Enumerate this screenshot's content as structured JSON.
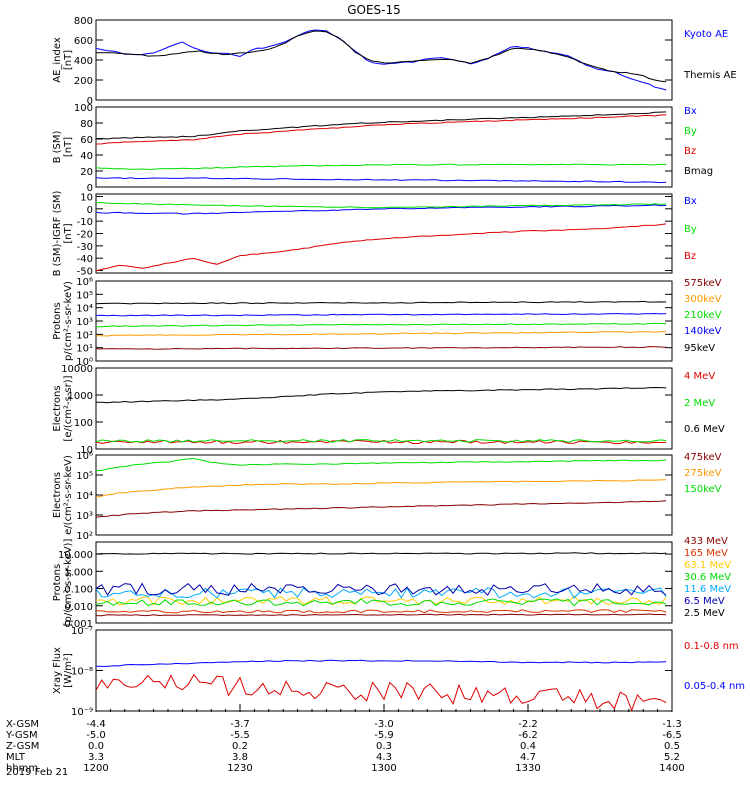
{
  "title": "GOES-15",
  "chart_data": [
    {
      "type": "line",
      "ylabel": [
        "AE_index",
        "[nT]"
      ],
      "ylim": [
        0,
        800
      ],
      "yscale": "linear",
      "yticks": [
        {
          "v": 0,
          "t": "0"
        },
        {
          "v": 200,
          "t": "200"
        },
        {
          "v": 400,
          "t": "400"
        },
        {
          "v": 600,
          "t": "600"
        },
        {
          "v": 800,
          "t": "800"
        }
      ],
      "series": [
        {
          "name": "Kyoto AE",
          "color": "#0000ff",
          "kind": "knots",
          "x": [
            0,
            3,
            6,
            9,
            12,
            15,
            18,
            21,
            24,
            27,
            30,
            33,
            36,
            39,
            42,
            45,
            48,
            51,
            54,
            57,
            60,
            63,
            66,
            69,
            72,
            75,
            78,
            81,
            84,
            87,
            90,
            93,
            96,
            99,
            102,
            105,
            108,
            111,
            114,
            117,
            120
          ],
          "y": [
            520,
            490,
            460,
            450,
            470,
            530,
            580,
            510,
            470,
            470,
            440,
            510,
            530,
            570,
            640,
            700,
            690,
            610,
            490,
            380,
            360,
            370,
            380,
            410,
            420,
            400,
            360,
            400,
            470,
            540,
            520,
            490,
            470,
            430,
            350,
            300,
            280,
            220,
            180,
            120,
            80
          ]
        },
        {
          "name": "Themis AE",
          "color": "#000000",
          "kind": "knots",
          "x": [
            0,
            3,
            6,
            9,
            12,
            15,
            18,
            21,
            24,
            27,
            30,
            33,
            36,
            39,
            42,
            45,
            48,
            51,
            54,
            57,
            60,
            63,
            66,
            69,
            72,
            75,
            78,
            81,
            84,
            87,
            90,
            93,
            96,
            99,
            102,
            105,
            108,
            111,
            114,
            117,
            120
          ],
          "y": [
            470,
            470,
            460,
            450,
            440,
            450,
            470,
            490,
            470,
            450,
            470,
            480,
            510,
            560,
            640,
            690,
            680,
            610,
            480,
            390,
            370,
            380,
            390,
            400,
            410,
            400,
            370,
            410,
            460,
            520,
            510,
            490,
            460,
            420,
            360,
            320,
            280,
            270,
            240,
            190,
            170
          ]
        }
      ]
    },
    {
      "type": "line",
      "ylabel": [
        "B (SM)",
        "[nT]"
      ],
      "ylim": [
        0,
        100
      ],
      "yscale": "linear",
      "yticks": [
        {
          "v": 0,
          "t": "0"
        },
        {
          "v": 20,
          "t": "20"
        },
        {
          "v": 40,
          "t": "40"
        },
        {
          "v": 60,
          "t": "60"
        },
        {
          "v": 80,
          "t": "80"
        },
        {
          "v": 100,
          "t": "100"
        }
      ],
      "series": [
        {
          "name": "Bx",
          "color": "#0000ff",
          "kind": "knots",
          "x": [
            0,
            20,
            40,
            60,
            80,
            100,
            120
          ],
          "y": [
            11,
            11,
            10,
            9,
            8,
            7,
            6
          ]
        },
        {
          "name": "By",
          "color": "#00dd00",
          "kind": "knots",
          "x": [
            0,
            10,
            20,
            30,
            40,
            50,
            60,
            70,
            80,
            90,
            100,
            110,
            120
          ],
          "y": [
            24,
            22,
            23,
            25,
            26,
            27,
            28,
            28,
            28,
            28,
            28,
            28,
            28
          ]
        },
        {
          "name": "Bz",
          "color": "#dd0000",
          "kind": "knots",
          "x": [
            0,
            10,
            20,
            30,
            40,
            50,
            60,
            70,
            80,
            90,
            100,
            110,
            120
          ],
          "y": [
            54,
            57,
            59,
            66,
            70,
            74,
            78,
            80,
            82,
            84,
            86,
            88,
            90
          ]
        },
        {
          "name": "Bmag",
          "color": "#000000",
          "kind": "knots",
          "x": [
            0,
            10,
            20,
            30,
            40,
            50,
            60,
            70,
            80,
            90,
            100,
            110,
            120
          ],
          "y": [
            60,
            62,
            63,
            70,
            74,
            78,
            81,
            83,
            85,
            87,
            89,
            91,
            94
          ]
        }
      ]
    },
    {
      "type": "line",
      "ylabel": [
        "B (SM)-IGRF (SM)",
        "[nT]"
      ],
      "ylim": [
        -52,
        12
      ],
      "yscale": "linear",
      "yticks": [
        {
          "v": -50,
          "t": "-50"
        },
        {
          "v": -40,
          "t": "-40"
        },
        {
          "v": -30,
          "t": "-30"
        },
        {
          "v": -20,
          "t": "-20"
        },
        {
          "v": -10,
          "t": "-10"
        },
        {
          "v": 0,
          "t": "0"
        },
        {
          "v": 10,
          "t": "10"
        }
      ],
      "series": [
        {
          "name": "Bx",
          "color": "#0000ff",
          "kind": "knots",
          "x": [
            0,
            20,
            40,
            60,
            80,
            100,
            120
          ],
          "y": [
            -3,
            -4,
            -2,
            0,
            1,
            2,
            3
          ]
        },
        {
          "name": "By",
          "color": "#00dd00",
          "kind": "knots",
          "x": [
            0,
            20,
            40,
            60,
            80,
            100,
            120
          ],
          "y": [
            5,
            3,
            2,
            1,
            2,
            3,
            4
          ]
        },
        {
          "name": "Bz",
          "color": "#dd0000",
          "kind": "knots",
          "x": [
            0,
            5,
            10,
            15,
            20,
            25,
            30,
            35,
            40,
            45,
            50,
            55,
            60,
            70,
            80,
            90,
            100,
            110,
            120
          ],
          "y": [
            -50,
            -46,
            -48,
            -44,
            -40,
            -45,
            -38,
            -36,
            -34,
            -31,
            -28,
            -26,
            -24,
            -22,
            -20,
            -18,
            -17,
            -15,
            -12
          ]
        }
      ]
    },
    {
      "type": "line",
      "ylabel": [
        "Protons",
        "p/(cm²-s-sr-keV)"
      ],
      "ylim": [
        0,
        6
      ],
      "yscale": "log10",
      "yticks": [
        {
          "v": 0,
          "t": "10⁰"
        },
        {
          "v": 1,
          "t": "10¹"
        },
        {
          "v": 2,
          "t": "10²"
        },
        {
          "v": 3,
          "t": "10³"
        },
        {
          "v": 4,
          "t": "10⁴"
        },
        {
          "v": 5,
          "t": "10⁵"
        },
        {
          "v": 6,
          "t": "10⁶"
        }
      ],
      "series": [
        {
          "name": "575keV",
          "color": "#880000",
          "kind": "knots",
          "x": [
            0,
            40,
            80,
            120
          ],
          "y": [
            0.9,
            0.95,
            1.0,
            1.05
          ]
        },
        {
          "name": "300keV",
          "color": "#ff9900",
          "kind": "knots",
          "x": [
            0,
            40,
            80,
            120
          ],
          "y": [
            1.9,
            2.0,
            2.1,
            2.2
          ]
        },
        {
          "name": "210keV",
          "color": "#00dd00",
          "kind": "knots",
          "x": [
            0,
            40,
            80,
            120
          ],
          "y": [
            2.6,
            2.7,
            2.75,
            2.8
          ]
        },
        {
          "name": "140keV",
          "color": "#0000ff",
          "kind": "knots",
          "x": [
            0,
            40,
            80,
            120
          ],
          "y": [
            3.4,
            3.45,
            3.5,
            3.55
          ]
        },
        {
          "name": "95keV",
          "color": "#000000",
          "kind": "knots",
          "x": [
            0,
            40,
            80,
            120
          ],
          "y": [
            4.3,
            4.35,
            4.4,
            4.45
          ]
        }
      ]
    },
    {
      "type": "line",
      "ylabel": [
        "Electrons",
        "[e/(cm²-s-sr)]"
      ],
      "ylim": [
        1,
        4
      ],
      "yscale": "log10",
      "yticks": [
        {
          "v": 1,
          "t": "10"
        },
        {
          "v": 2,
          "t": "100"
        },
        {
          "v": 3,
          "t": "1000"
        },
        {
          "v": 4,
          "t": "10000"
        }
      ],
      "series": [
        {
          "name": "4 MeV",
          "color": "#dd0000",
          "kind": "noise",
          "x": [
            0,
            120
          ],
          "y": [
            1.26,
            1.26
          ],
          "amp": 0.06
        },
        {
          "name": "2 MeV",
          "color": "#00dd00",
          "kind": "noise",
          "x": [
            0,
            120
          ],
          "y": [
            1.3,
            1.3
          ],
          "amp": 0.05
        },
        {
          "name": "0.6 MeV",
          "color": "#000000",
          "kind": "knots",
          "x": [
            0,
            10,
            20,
            30,
            40,
            50,
            60,
            70,
            80,
            90,
            100,
            110,
            120
          ],
          "y": [
            2.72,
            2.76,
            2.8,
            2.85,
            2.95,
            3.05,
            3.12,
            3.15,
            3.17,
            3.2,
            3.22,
            3.25,
            3.28
          ]
        }
      ]
    },
    {
      "type": "line",
      "ylabel": [
        "Electrons",
        "e/(cm²-s-sr-keV)"
      ],
      "ylim": [
        2,
        6
      ],
      "yscale": "log10",
      "yticks": [
        {
          "v": 2,
          "t": "10²"
        },
        {
          "v": 3,
          "t": "10³"
        },
        {
          "v": 4,
          "t": "10⁴"
        },
        {
          "v": 5,
          "t": "10⁵"
        },
        {
          "v": 6,
          "t": "10⁶"
        }
      ],
      "series": [
        {
          "name": "475keV",
          "color": "#880000",
          "kind": "knots",
          "x": [
            0,
            10,
            20,
            30,
            40,
            50,
            60,
            70,
            80,
            90,
            100,
            110,
            120
          ],
          "y": [
            2.9,
            3.1,
            3.2,
            3.25,
            3.3,
            3.35,
            3.4,
            3.45,
            3.5,
            3.55,
            3.6,
            3.65,
            3.7
          ]
        },
        {
          "name": "275keV",
          "color": "#ff9900",
          "kind": "knots",
          "x": [
            0,
            5,
            10,
            15,
            20,
            25,
            30,
            40,
            50,
            60,
            70,
            80,
            90,
            100,
            110,
            120
          ],
          "y": [
            3.9,
            4.1,
            4.2,
            4.3,
            4.4,
            4.45,
            4.5,
            4.55,
            4.55,
            4.6,
            4.62,
            4.65,
            4.67,
            4.7,
            4.72,
            4.75
          ]
        },
        {
          "name": "150keV",
          "color": "#00dd00",
          "kind": "knots",
          "x": [
            0,
            5,
            10,
            15,
            20,
            25,
            30,
            40,
            50,
            60,
            70,
            80,
            90,
            100,
            110,
            120
          ],
          "y": [
            5.2,
            5.4,
            5.55,
            5.65,
            5.85,
            5.6,
            5.5,
            5.55,
            5.55,
            5.6,
            5.62,
            5.65,
            5.67,
            5.7,
            5.72,
            5.75
          ]
        }
      ]
    },
    {
      "type": "line",
      "ylabel": [
        "Protons",
        "[p/(cm²-s-sr-keV)]"
      ],
      "ylim": [
        -3,
        1.7
      ],
      "yscale": "log10",
      "yticks": [
        {
          "v": -3,
          "t": "0.001"
        },
        {
          "v": -2,
          "t": "0.010"
        },
        {
          "v": -1,
          "t": "0.100"
        },
        {
          "v": 0,
          "t": "1.000"
        },
        {
          "v": 1,
          "t": "10.000"
        }
      ],
      "series": [
        {
          "name": "433 MeV",
          "color": "#880000",
          "kind": "knots",
          "x": [
            0,
            120
          ],
          "y": [
            -2.55,
            -2.5
          ]
        },
        {
          "name": "165 MeV",
          "color": "#dd3300",
          "kind": "noise",
          "x": [
            0,
            120
          ],
          "y": [
            -2.35,
            -2.3
          ],
          "amp": 0.08
        },
        {
          "name": "63.1 MeV",
          "color": "#ffcc00",
          "kind": "noise",
          "x": [
            0,
            120
          ],
          "y": [
            -1.7,
            -1.7
          ],
          "amp": 0.25
        },
        {
          "name": "30.6 MeV",
          "color": "#00dd00",
          "kind": "noise",
          "x": [
            0,
            120
          ],
          "y": [
            -1.8,
            -1.8
          ],
          "amp": 0.2
        },
        {
          "name": "11.6 MeV",
          "color": "#00aaff",
          "kind": "noise",
          "x": [
            0,
            120
          ],
          "y": [
            -1.25,
            -1.25
          ],
          "amp": 0.3
        },
        {
          "name": "6.5 MeV",
          "color": "#0000aa",
          "kind": "noise",
          "x": [
            0,
            120
          ],
          "y": [
            -1.05,
            -1.05
          ],
          "amp": 0.35
        },
        {
          "name": "2.5 MeV",
          "color": "#000000",
          "kind": "knots",
          "x": [
            0,
            20,
            40,
            60,
            80,
            100,
            120
          ],
          "y": [
            1.02,
            1.03,
            1.02,
            1.04,
            1.03,
            1.05,
            1.03
          ]
        }
      ]
    },
    {
      "type": "line",
      "ylabel": [
        "Xray Flux",
        "[W/m²]"
      ],
      "ylim": [
        -9,
        -7
      ],
      "yscale": "log10",
      "yticks": [
        {
          "v": -9,
          "t": "10⁻⁹"
        },
        {
          "v": -8,
          "t": "10⁻⁸"
        },
        {
          "v": -7,
          "t": "10⁻⁷"
        }
      ],
      "series": [
        {
          "name": "0.1-0.8 nm",
          "color": "#dd0000",
          "kind": "noise",
          "x": [
            0,
            120
          ],
          "y": [
            -8.25,
            -8.8
          ],
          "amp": 0.25
        },
        {
          "name": "0.05-0.4 nm",
          "color": "#0000ff",
          "kind": "knots",
          "x": [
            0,
            10,
            20,
            30,
            40,
            50,
            60,
            70,
            80,
            90,
            100,
            110,
            120
          ],
          "y": [
            -7.9,
            -7.85,
            -7.82,
            -7.78,
            -7.76,
            -7.76,
            -7.76,
            -7.76,
            -7.78,
            -7.8,
            -7.8,
            -7.8,
            -7.78
          ]
        }
      ]
    }
  ],
  "x_axis": {
    "minutes": [
      0,
      30,
      60,
      90,
      120
    ],
    "rows": [
      {
        "label": "X-GSM",
        "values": [
          "-4.4",
          "-3.7",
          "-3.0",
          "-2.2",
          "-1.3"
        ]
      },
      {
        "label": "Y-GSM",
        "values": [
          "-5.0",
          "-5.5",
          "-5.9",
          "-6.2",
          "-6.5"
        ]
      },
      {
        "label": "Z-GSM",
        "values": [
          "0.0",
          "0.2",
          "0.3",
          "0.4",
          "0.5"
        ]
      },
      {
        "label": "MLT",
        "values": [
          "3.3",
          "3.8",
          "4.3",
          "4.7",
          "5.2"
        ]
      },
      {
        "label": "hhmm",
        "values": [
          "1200",
          "1230",
          "1300",
          "1330",
          "1400"
        ]
      }
    ],
    "date": "2019 Feb 21"
  }
}
